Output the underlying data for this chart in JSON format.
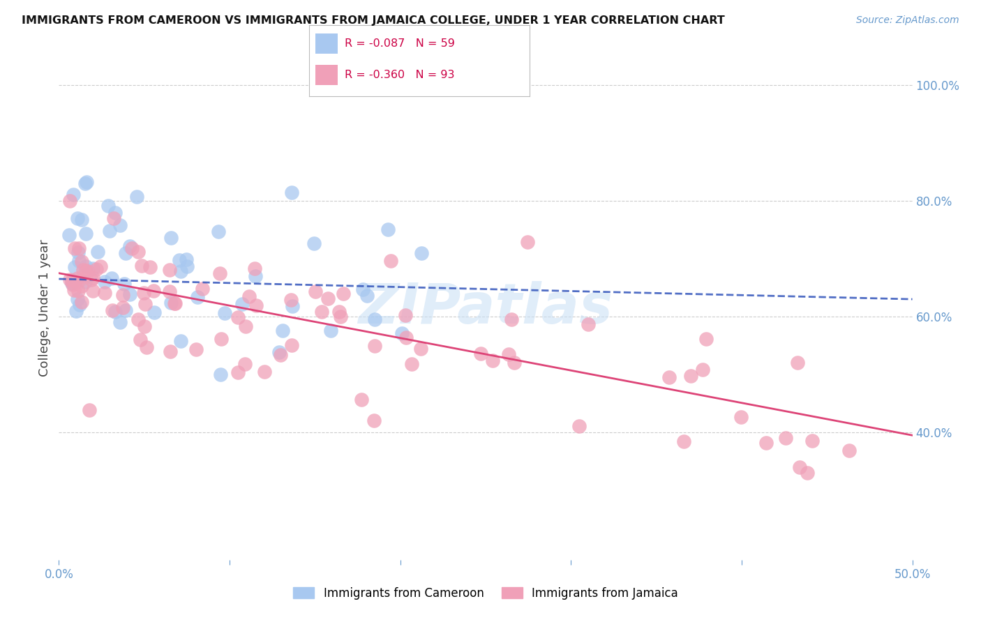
{
  "title": "IMMIGRANTS FROM CAMEROON VS IMMIGRANTS FROM JAMAICA COLLEGE, UNDER 1 YEAR CORRELATION CHART",
  "source": "Source: ZipAtlas.com",
  "ylabel": "College, Under 1 year",
  "cameroon_R": -0.087,
  "cameroon_N": 59,
  "jamaica_R": -0.36,
  "jamaica_N": 93,
  "cameroon_color": "#a8c8f0",
  "jamaica_color": "#f0a0b8",
  "cameroon_line_color": "#3355bb",
  "jamaica_line_color": "#dd4477",
  "legend_label_cameroon": "Immigrants from Cameroon",
  "legend_label_jamaica": "Immigrants from Jamaica",
  "watermark": "ZIPatlas",
  "background_color": "#ffffff",
  "grid_color": "#cccccc",
  "axis_color": "#6699cc",
  "xlim": [
    0.0,
    0.5
  ],
  "ylim": [
    0.18,
    1.05
  ],
  "right_ytick_vals": [
    0.4,
    0.6,
    0.8,
    1.0
  ],
  "right_ytick_labels": [
    "40.0%",
    "60.0%",
    "80.0%",
    "100.0%"
  ],
  "cam_trend_x0": 0.0,
  "cam_trend_y0": 0.665,
  "cam_trend_x1": 0.5,
  "cam_trend_y1": 0.63,
  "jam_trend_x0": 0.0,
  "jam_trend_y0": 0.675,
  "jam_trend_x1": 0.5,
  "jam_trend_y1": 0.395
}
